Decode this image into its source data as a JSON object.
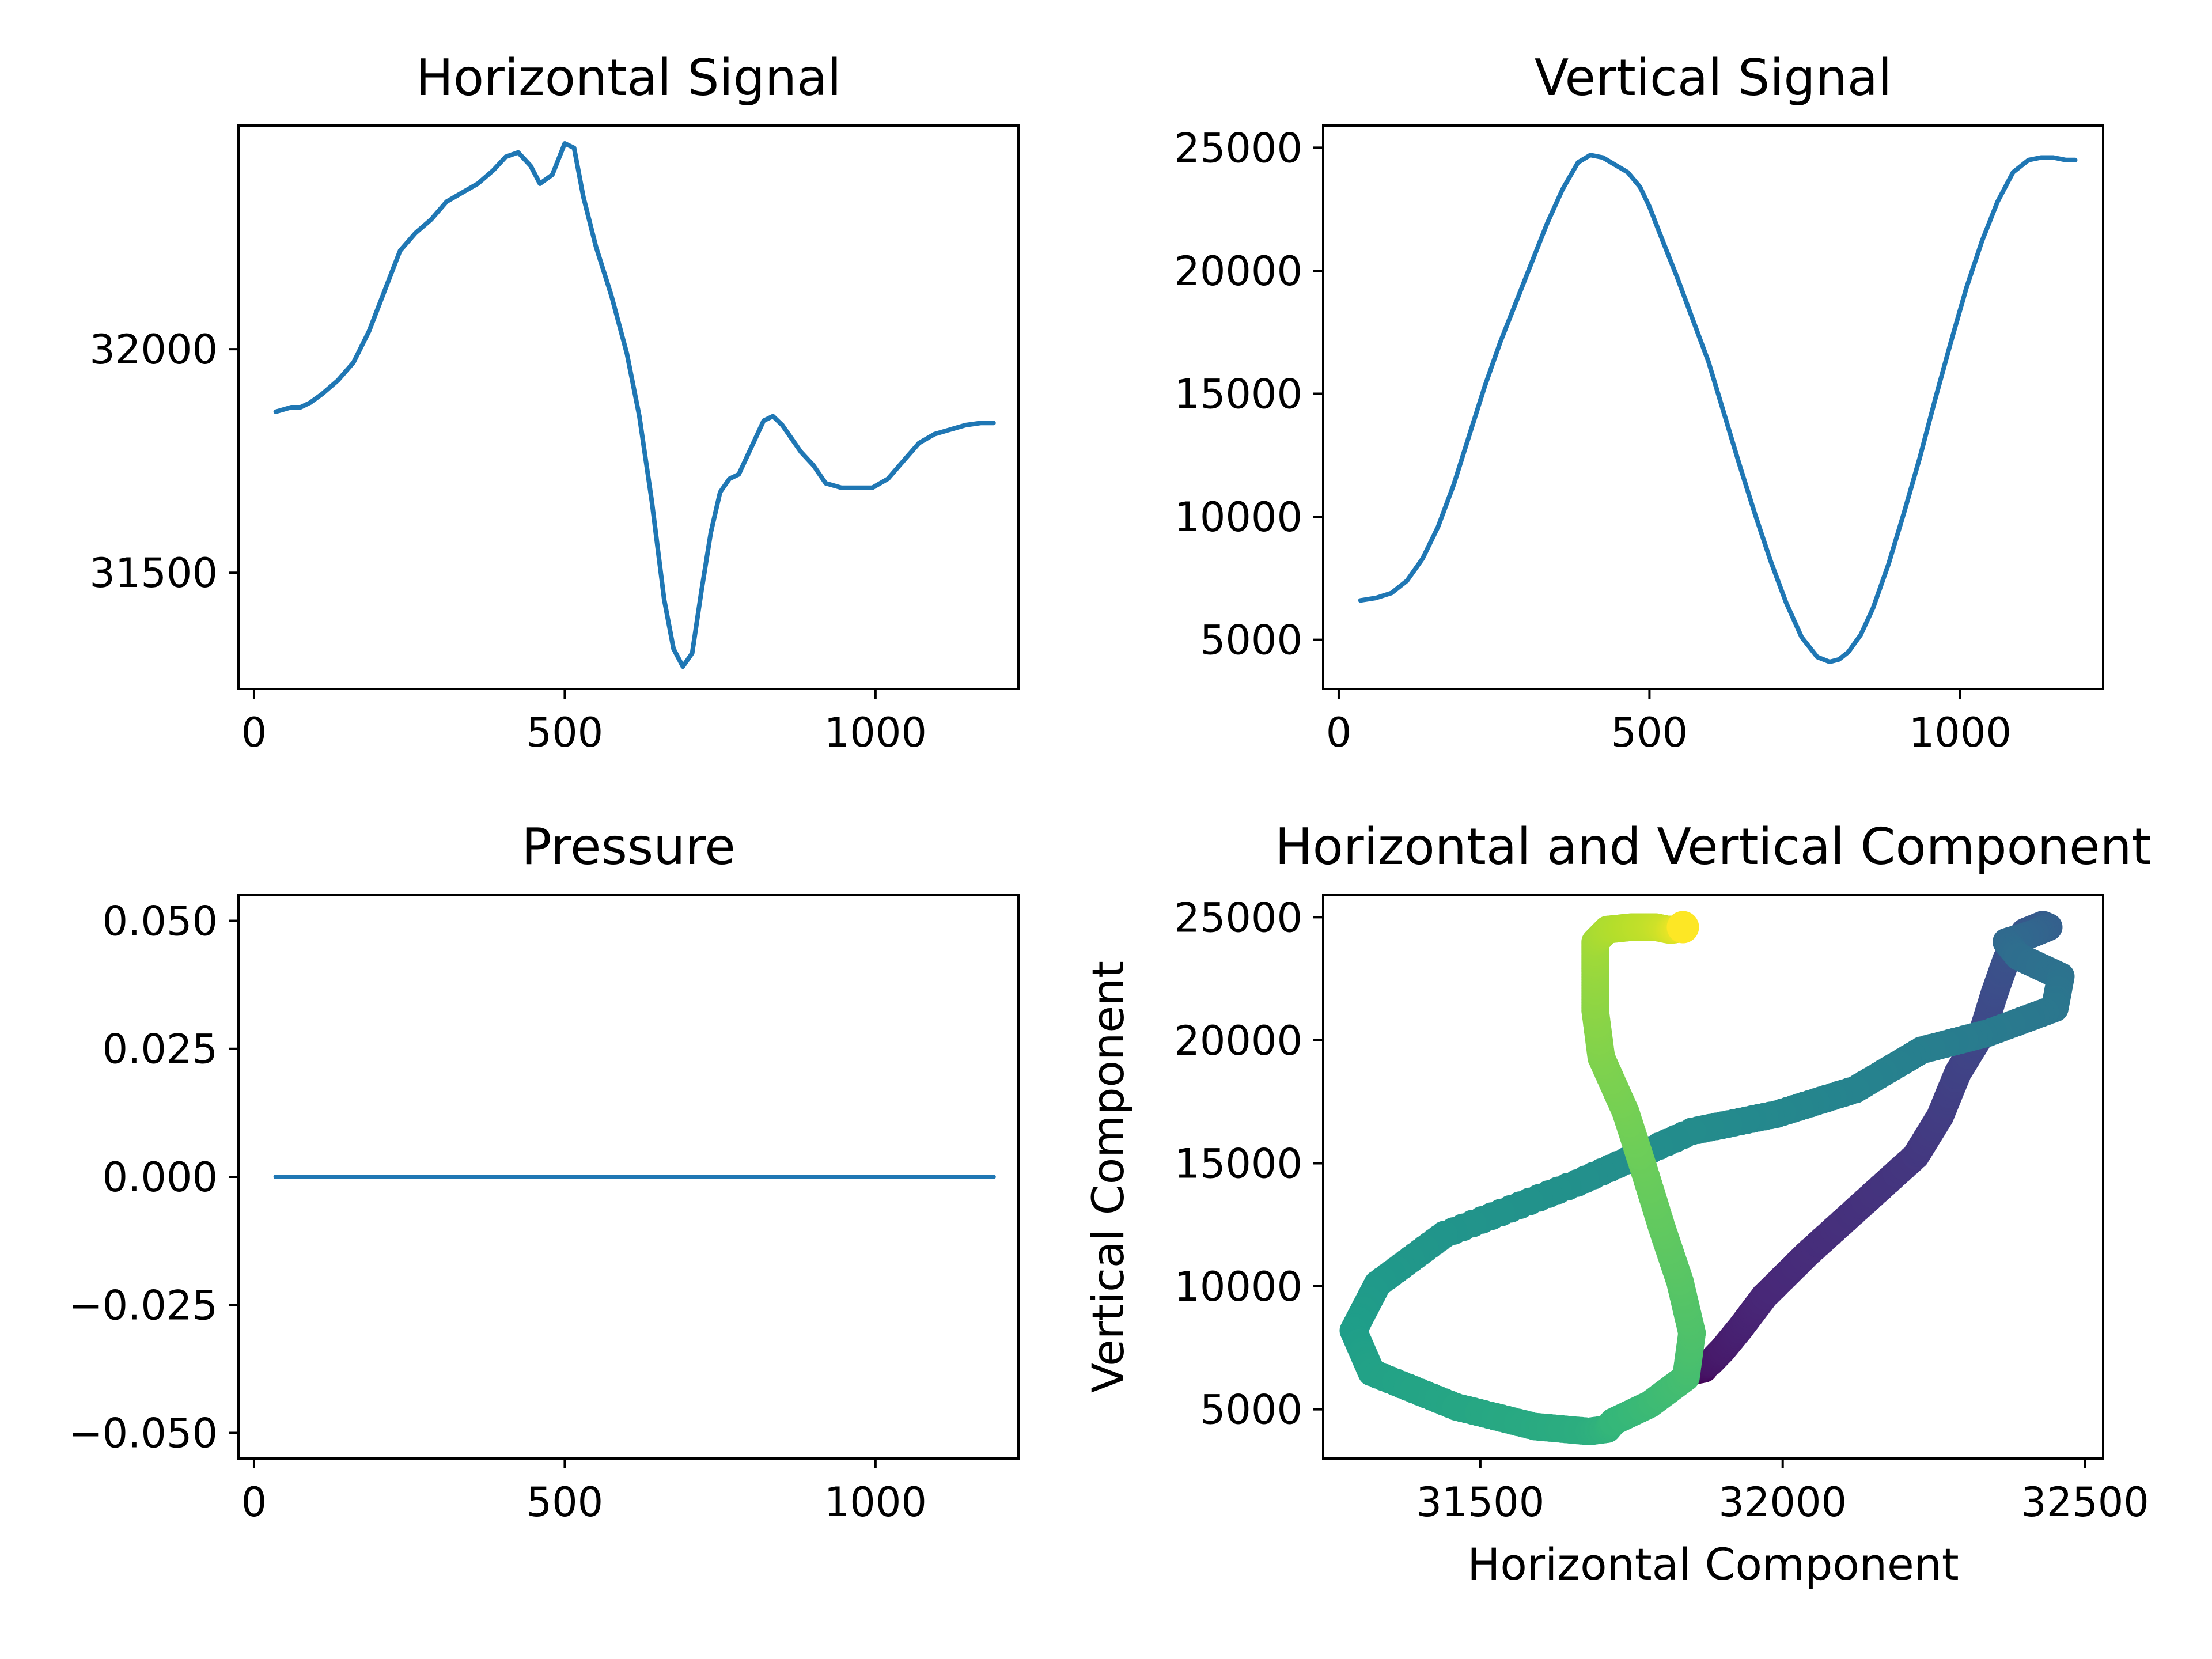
{
  "chart_data": [
    {
      "type": "line",
      "title": "Horizontal Signal",
      "xlabel": "",
      "ylabel": "",
      "xlim": [
        -25,
        1230
      ],
      "ylim": [
        31240,
        32500
      ],
      "xticks": [
        0,
        500,
        1000
      ],
      "yticks": [
        31500,
        32000
      ],
      "xtick_labels": [
        "0",
        "500",
        "1000"
      ],
      "ytick_labels": [
        "31500",
        "32000"
      ],
      "grid": false,
      "series": [
        {
          "color": "#1f77b4",
          "x": [
            35,
            60,
            75,
            90,
            110,
            135,
            160,
            185,
            210,
            235,
            260,
            285,
            310,
            335,
            360,
            385,
            405,
            425,
            445,
            460,
            480,
            500,
            515,
            530,
            550,
            575,
            600,
            620,
            640,
            660,
            675,
            690,
            705,
            720,
            735,
            750,
            765,
            780,
            800,
            820,
            835,
            850,
            865,
            880,
            900,
            920,
            945,
            970,
            995,
            1020,
            1045,
            1070,
            1095,
            1120,
            1145,
            1170,
            1190
          ],
          "y": [
            31860,
            31870,
            31870,
            31880,
            31900,
            31930,
            31970,
            32040,
            32130,
            32220,
            32260,
            32290,
            32330,
            32350,
            32370,
            32400,
            32430,
            32440,
            32410,
            32370,
            32390,
            32460,
            32450,
            32340,
            32230,
            32120,
            31990,
            31850,
            31660,
            31440,
            31330,
            31290,
            31320,
            31460,
            31590,
            31680,
            31710,
            31720,
            31780,
            31840,
            31850,
            31830,
            31800,
            31770,
            31740,
            31700,
            31690,
            31690,
            31690,
            31710,
            31750,
            31790,
            31810,
            31820,
            31830,
            31835,
            31835
          ]
        }
      ]
    },
    {
      "type": "line",
      "title": "Vertical Signal",
      "xlabel": "",
      "ylabel": "",
      "xlim": [
        -25,
        1230
      ],
      "ylim": [
        3000,
        25900
      ],
      "xticks": [
        0,
        500,
        1000
      ],
      "yticks": [
        5000,
        10000,
        15000,
        20000,
        25000
      ],
      "xtick_labels": [
        "0",
        "500",
        "1000"
      ],
      "ytick_labels": [
        "5000",
        "10000",
        "15000",
        "20000",
        "25000"
      ],
      "grid": false,
      "series": [
        {
          "color": "#1f77b4",
          "x": [
            35,
            60,
            85,
            110,
            135,
            160,
            185,
            210,
            235,
            260,
            285,
            310,
            335,
            360,
            385,
            405,
            425,
            445,
            465,
            485,
            500,
            520,
            545,
            570,
            595,
            620,
            645,
            670,
            695,
            720,
            745,
            770,
            790,
            805,
            820,
            840,
            860,
            885,
            910,
            935,
            960,
            985,
            1010,
            1035,
            1060,
            1085,
            1110,
            1130,
            1150,
            1170,
            1185
          ],
          "y": [
            6600,
            6700,
            6900,
            7400,
            8300,
            9600,
            11300,
            13300,
            15300,
            17100,
            18700,
            20300,
            21900,
            23300,
            24400,
            24700,
            24600,
            24300,
            24000,
            23400,
            22600,
            21300,
            19700,
            18000,
            16300,
            14200,
            12100,
            10100,
            8200,
            6500,
            5100,
            4300,
            4100,
            4200,
            4500,
            5200,
            6300,
            8100,
            10200,
            12400,
            14800,
            17100,
            19300,
            21200,
            22800,
            24000,
            24500,
            24600,
            24600,
            24500,
            24500
          ]
        }
      ]
    },
    {
      "type": "line",
      "title": "Pressure",
      "xlabel": "",
      "ylabel": "",
      "xlim": [
        -25,
        1230
      ],
      "ylim": [
        -0.055,
        0.055
      ],
      "xticks": [
        0,
        500,
        1000
      ],
      "yticks": [
        -0.05,
        -0.025,
        0.0,
        0.025,
        0.05
      ],
      "xtick_labels": [
        "0",
        "500",
        "1000"
      ],
      "ytick_labels": [
        "−0.050",
        "−0.025",
        "0.000",
        "0.025",
        "0.050"
      ],
      "grid": false,
      "series": [
        {
          "color": "#1f77b4",
          "x": [
            35,
            1190
          ],
          "y": [
            0,
            0
          ]
        }
      ]
    },
    {
      "type": "scatter",
      "title": "Horizontal and Vertical Component",
      "xlabel": "Horizontal Component",
      "ylabel": "Vertical Component",
      "xlim": [
        31240,
        32530
      ],
      "ylim": [
        3000,
        25900
      ],
      "xticks": [
        31500,
        32000,
        32500
      ],
      "yticks": [
        5000,
        10000,
        15000,
        20000,
        25000
      ],
      "xtick_labels": [
        "31500",
        "32000",
        "32500"
      ],
      "ytick_labels": [
        "5000",
        "10000",
        "15000",
        "20000",
        "25000"
      ],
      "grid": false,
      "colormap": "viridis",
      "colormap_stops": [
        "#440154",
        "#482878",
        "#3e4989",
        "#31688e",
        "#26828e",
        "#1f9e89",
        "#35b779",
        "#6ece58",
        "#b5de2b",
        "#fde725"
      ],
      "color_by": "sample index",
      "series": [
        {
          "x": [
            31860,
            31870,
            31870,
            31880,
            31900,
            31930,
            31970,
            32040,
            32130,
            32220,
            32260,
            32290,
            32330,
            32350,
            32370,
            32400,
            32430,
            32440,
            32410,
            32370,
            32390,
            32460,
            32450,
            32340,
            32230,
            32120,
            31990,
            31850,
            31660,
            31440,
            31330,
            31290,
            31320,
            31460,
            31590,
            31680,
            31710,
            31720,
            31780,
            31840,
            31850,
            31830,
            31800,
            31770,
            31740,
            31700,
            31690,
            31690,
            31690,
            31710,
            31750,
            31790,
            31810,
            31820,
            31830,
            31835,
            31835
          ],
          "y": [
            6600,
            6650,
            6750,
            6900,
            7400,
            8300,
            9600,
            11300,
            13300,
            15300,
            16900,
            18700,
            20300,
            21900,
            23300,
            24400,
            24700,
            24600,
            24300,
            24000,
            23400,
            22600,
            21300,
            20300,
            19600,
            18000,
            17000,
            16300,
            14200,
            12100,
            10100,
            8200,
            6500,
            5100,
            4300,
            4100,
            4200,
            4500,
            5200,
            6300,
            8100,
            10200,
            12400,
            14800,
            17100,
            19300,
            21200,
            22800,
            24000,
            24500,
            24600,
            24600,
            24500,
            24500,
            24550,
            24600,
            24600
          ]
        }
      ]
    }
  ]
}
